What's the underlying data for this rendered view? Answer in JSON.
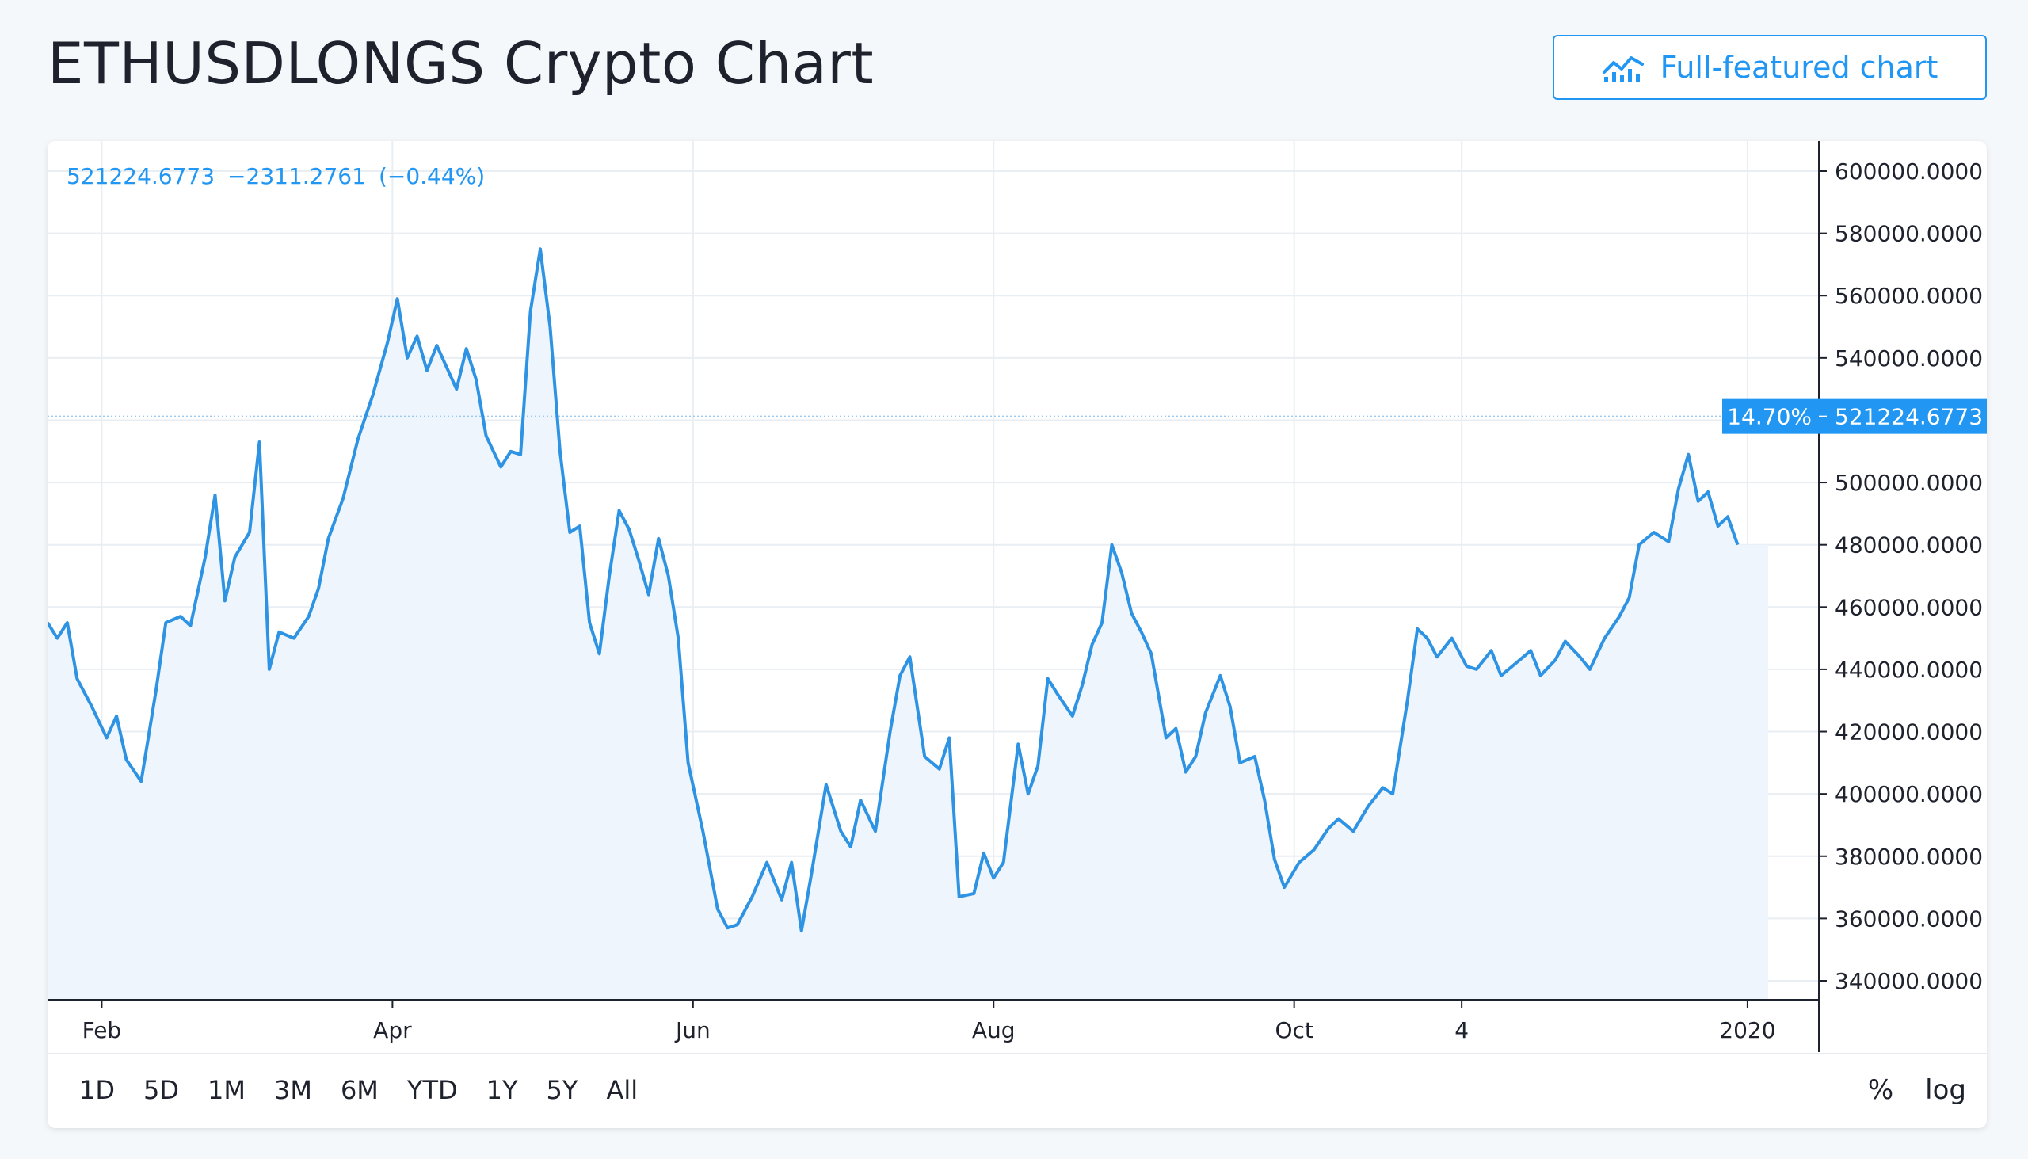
{
  "page": {
    "title": "ETHUSDLONGS Crypto Chart",
    "full_chart_label": "Full-featured chart"
  },
  "legend": {
    "last": "521224.6773",
    "change": "−2311.2761",
    "pct": "(−0.44%)"
  },
  "price_tag": {
    "pct": "14.70%",
    "value": "521224.6773"
  },
  "range_buttons": [
    "1D",
    "5D",
    "1M",
    "3M",
    "6M",
    "YTD",
    "1Y",
    "5Y",
    "All"
  ],
  "scale_buttons": [
    "%",
    "log"
  ],
  "colors": {
    "accent": "#2196f3",
    "line": "#2e93e3",
    "fill": "#eef5fc",
    "grid": "#e9eef3",
    "axis": "#1e222d"
  },
  "chart_data": {
    "type": "area",
    "title": "",
    "xlabel": "",
    "ylabel": "",
    "ylim": [
      333000,
      607000
    ],
    "y_ticks": [
      600000,
      580000,
      560000,
      540000,
      520000,
      500000,
      480000,
      460000,
      440000,
      420000,
      400000,
      380000,
      360000,
      340000
    ],
    "y_tick_labels": [
      "600000.0000",
      "580000.0000",
      "560000.0000",
      "540000.0000",
      "520000.0000",
      "500000.0000",
      "480000.0000",
      "460000.0000",
      "440000.0000",
      "420000.0000",
      "400000.0000",
      "380000.0000",
      "360000.0000",
      "340000.0000"
    ],
    "x_tick_labels": [
      {
        "label": "Feb",
        "date": "2019-02-01"
      },
      {
        "label": "Apr",
        "date": "2019-04-01"
      },
      {
        "label": "Jun",
        "date": "2019-06-01"
      },
      {
        "label": "Aug",
        "date": "2019-08-01"
      },
      {
        "label": "Oct",
        "date": "2019-10-01"
      },
      {
        "label": "4",
        "date": "2019-11-04"
      },
      {
        "label": "2020",
        "date": "2020-01-01"
      }
    ],
    "x_range": [
      "2019-01-21",
      "2020-01-06"
    ],
    "current_value": 521224.6773,
    "series": [
      {
        "points": [
          [
            "2019-01-21",
            455000
          ],
          [
            "2019-01-23",
            450000
          ],
          [
            "2019-01-25",
            455000
          ],
          [
            "2019-01-27",
            437000
          ],
          [
            "2019-01-30",
            428000
          ],
          [
            "2019-02-02",
            418000
          ],
          [
            "2019-02-04",
            425000
          ],
          [
            "2019-02-06",
            411000
          ],
          [
            "2019-02-09",
            404000
          ],
          [
            "2019-02-12",
            433000
          ],
          [
            "2019-02-14",
            455000
          ],
          [
            "2019-02-17",
            457000
          ],
          [
            "2019-02-19",
            454000
          ],
          [
            "2019-02-22",
            476000
          ],
          [
            "2019-02-24",
            496000
          ],
          [
            "2019-02-26",
            462000
          ],
          [
            "2019-02-28",
            476000
          ],
          [
            "2019-03-03",
            484000
          ],
          [
            "2019-03-05",
            513000
          ],
          [
            "2019-03-07",
            440000
          ],
          [
            "2019-03-09",
            452000
          ],
          [
            "2019-03-12",
            450000
          ],
          [
            "2019-03-15",
            457000
          ],
          [
            "2019-03-17",
            466000
          ],
          [
            "2019-03-19",
            482000
          ],
          [
            "2019-03-22",
            495000
          ],
          [
            "2019-03-25",
            514000
          ],
          [
            "2019-03-28",
            528000
          ],
          [
            "2019-03-31",
            545000
          ],
          [
            "2019-04-02",
            559000
          ],
          [
            "2019-04-04",
            540000
          ],
          [
            "2019-04-06",
            547000
          ],
          [
            "2019-04-08",
            536000
          ],
          [
            "2019-04-10",
            544000
          ],
          [
            "2019-04-12",
            537000
          ],
          [
            "2019-04-14",
            530000
          ],
          [
            "2019-04-16",
            543000
          ],
          [
            "2019-04-18",
            533000
          ],
          [
            "2019-04-20",
            515000
          ],
          [
            "2019-04-23",
            505000
          ],
          [
            "2019-04-25",
            510000
          ],
          [
            "2019-04-27",
            509000
          ],
          [
            "2019-04-29",
            555000
          ],
          [
            "2019-05-01",
            575000
          ],
          [
            "2019-05-03",
            550000
          ],
          [
            "2019-05-05",
            510000
          ],
          [
            "2019-05-07",
            484000
          ],
          [
            "2019-05-09",
            486000
          ],
          [
            "2019-05-11",
            455000
          ],
          [
            "2019-05-13",
            445000
          ],
          [
            "2019-05-15",
            470000
          ],
          [
            "2019-05-17",
            491000
          ],
          [
            "2019-05-19",
            485000
          ],
          [
            "2019-05-21",
            475000
          ],
          [
            "2019-05-23",
            464000
          ],
          [
            "2019-05-25",
            482000
          ],
          [
            "2019-05-27",
            470000
          ],
          [
            "2019-05-29",
            450000
          ],
          [
            "2019-05-31",
            410000
          ],
          [
            "2019-06-03",
            388000
          ],
          [
            "2019-06-06",
            363000
          ],
          [
            "2019-06-08",
            357000
          ],
          [
            "2019-06-10",
            358000
          ],
          [
            "2019-06-13",
            367000
          ],
          [
            "2019-06-16",
            378000
          ],
          [
            "2019-06-19",
            366000
          ],
          [
            "2019-06-21",
            378000
          ],
          [
            "2019-06-23",
            356000
          ],
          [
            "2019-06-25",
            374000
          ],
          [
            "2019-06-28",
            403000
          ],
          [
            "2019-07-01",
            388000
          ],
          [
            "2019-07-03",
            383000
          ],
          [
            "2019-07-05",
            398000
          ],
          [
            "2019-07-08",
            388000
          ],
          [
            "2019-07-11",
            420000
          ],
          [
            "2019-07-13",
            438000
          ],
          [
            "2019-07-15",
            444000
          ],
          [
            "2019-07-18",
            412000
          ],
          [
            "2019-07-21",
            408000
          ],
          [
            "2019-07-23",
            418000
          ],
          [
            "2019-07-25",
            367000
          ],
          [
            "2019-07-28",
            368000
          ],
          [
            "2019-07-30",
            381000
          ],
          [
            "2019-08-01",
            373000
          ],
          [
            "2019-08-03",
            378000
          ],
          [
            "2019-08-06",
            416000
          ],
          [
            "2019-08-08",
            400000
          ],
          [
            "2019-08-10",
            409000
          ],
          [
            "2019-08-12",
            437000
          ],
          [
            "2019-08-14",
            432000
          ],
          [
            "2019-08-17",
            425000
          ],
          [
            "2019-08-19",
            435000
          ],
          [
            "2019-08-21",
            448000
          ],
          [
            "2019-08-23",
            455000
          ],
          [
            "2019-08-25",
            480000
          ],
          [
            "2019-08-27",
            471000
          ],
          [
            "2019-08-29",
            458000
          ],
          [
            "2019-08-31",
            452000
          ],
          [
            "2019-09-02",
            445000
          ],
          [
            "2019-09-05",
            418000
          ],
          [
            "2019-09-07",
            421000
          ],
          [
            "2019-09-09",
            407000
          ],
          [
            "2019-09-11",
            412000
          ],
          [
            "2019-09-13",
            426000
          ],
          [
            "2019-09-16",
            438000
          ],
          [
            "2019-09-18",
            428000
          ],
          [
            "2019-09-20",
            410000
          ],
          [
            "2019-09-23",
            412000
          ],
          [
            "2019-09-25",
            398000
          ],
          [
            "2019-09-27",
            379000
          ],
          [
            "2019-09-29",
            370000
          ],
          [
            "2019-10-02",
            378000
          ],
          [
            "2019-10-05",
            382000
          ],
          [
            "2019-10-08",
            389000
          ],
          [
            "2019-10-10",
            392000
          ],
          [
            "2019-10-13",
            388000
          ],
          [
            "2019-10-16",
            396000
          ],
          [
            "2019-10-19",
            402000
          ],
          [
            "2019-10-21",
            400000
          ],
          [
            "2019-10-24",
            430000
          ],
          [
            "2019-10-26",
            453000
          ],
          [
            "2019-10-28",
            450000
          ],
          [
            "2019-10-30",
            444000
          ],
          [
            "2019-11-02",
            450000
          ],
          [
            "2019-11-05",
            441000
          ],
          [
            "2019-11-07",
            440000
          ],
          [
            "2019-11-10",
            446000
          ],
          [
            "2019-11-12",
            438000
          ],
          [
            "2019-11-15",
            442000
          ],
          [
            "2019-11-18",
            446000
          ],
          [
            "2019-11-20",
            438000
          ],
          [
            "2019-11-23",
            443000
          ],
          [
            "2019-11-25",
            449000
          ],
          [
            "2019-11-28",
            444000
          ],
          [
            "2019-11-30",
            440000
          ],
          [
            "2019-12-03",
            450000
          ],
          [
            "2019-12-06",
            457000
          ],
          [
            "2019-12-08",
            463000
          ],
          [
            "2019-12-10",
            480000
          ],
          [
            "2019-12-13",
            484000
          ],
          [
            "2019-12-16",
            481000
          ],
          [
            "2019-12-18",
            498000
          ],
          [
            "2019-12-20",
            509000
          ],
          [
            "2019-12-22",
            494000
          ],
          [
            "2019-12-24",
            497000
          ],
          [
            "2019-12-26",
            486000
          ],
          [
            "2019-12-28",
            489000
          ],
          [
            "2019-12-30",
            480000
          ]
        ]
      }
    ]
  }
}
